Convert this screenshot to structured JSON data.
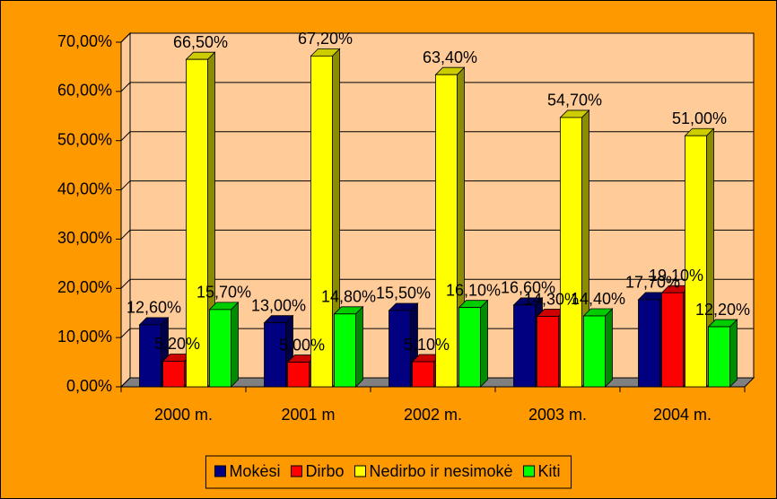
{
  "chart_data": {
    "type": "bar3d",
    "categories": [
      "2000 m.",
      "2001 m",
      "2002 m.",
      "2003 m.",
      "2004 m."
    ],
    "series": [
      {
        "name": "Mokėsi",
        "color": "#000080",
        "values": [
          12.6,
          13.0,
          15.5,
          16.6,
          17.7
        ],
        "value_labels": [
          "12,60%",
          "13,00%",
          "15,50%",
          "16,60%",
          "17,70%"
        ]
      },
      {
        "name": "Dirbo",
        "color": "#ff0000",
        "values": [
          5.2,
          5.0,
          5.1,
          14.3,
          19.1
        ],
        "value_labels": [
          "5,20%",
          "5,00%",
          "5,10%",
          "14,30%",
          "19,10%"
        ]
      },
      {
        "name": "Nedirbo ir nesimokė",
        "color": "#ffff00",
        "values": [
          66.5,
          67.2,
          63.4,
          54.7,
          51.0
        ],
        "value_labels": [
          "66,50%",
          "67,20%",
          "63,40%",
          "54,70%",
          "51,00%"
        ]
      },
      {
        "name": "Kiti",
        "color": "#00ff00",
        "values": [
          15.7,
          14.8,
          16.1,
          14.4,
          12.2
        ],
        "value_labels": [
          "15,70%",
          "14,80%",
          "16,10%",
          "14,40%",
          "12,20%"
        ]
      }
    ],
    "ylim": [
      0,
      70
    ],
    "yticks": [
      {
        "value": 0,
        "label": "0,00%"
      },
      {
        "value": 10,
        "label": "10,00%"
      },
      {
        "value": 20,
        "label": "20,00%"
      },
      {
        "value": 30,
        "label": "30,00%"
      },
      {
        "value": 40,
        "label": "40,00%"
      },
      {
        "value": 50,
        "label": "50,00%"
      },
      {
        "value": 60,
        "label": "60,00%"
      },
      {
        "value": 70,
        "label": "70,00%"
      }
    ],
    "grid": true,
    "legend": "bottom"
  }
}
